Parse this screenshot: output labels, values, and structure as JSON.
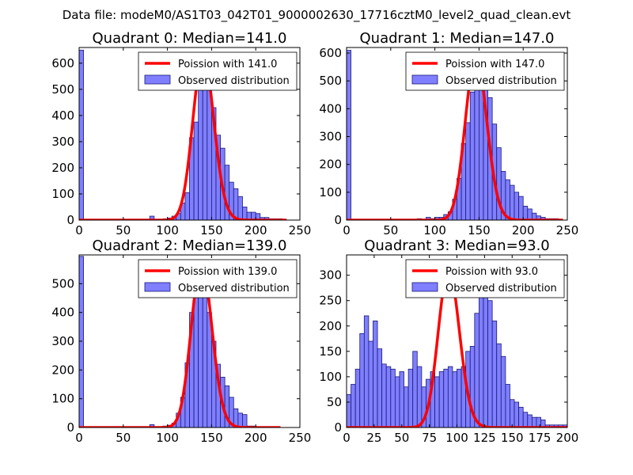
{
  "figure_title": "Data file: modeM0/AS1T03_042T01_9000002630_17716cztM0_level2_quad_clean.evt",
  "colors": {
    "bar_fill": "#7f7fff",
    "bar_edge": "#1a1a7a",
    "poisson": "#ff0000",
    "axes": "#000000",
    "legend_edge": "#000000"
  },
  "chart_data": [
    {
      "type": "bar",
      "title": "Quadrant 0: Median=141.0",
      "xlim": [
        0,
        250
      ],
      "ylim": [
        0,
        660
      ],
      "xticks": [
        0,
        50,
        100,
        150,
        200,
        250
      ],
      "yticks": [
        0,
        100,
        200,
        300,
        400,
        500,
        600
      ],
      "bin_width": 5,
      "bars": [
        [
          0,
          650
        ],
        [
          80,
          15
        ],
        [
          95,
          5
        ],
        [
          100,
          8
        ],
        [
          105,
          15
        ],
        [
          110,
          25
        ],
        [
          115,
          65
        ],
        [
          120,
          105
        ],
        [
          125,
          315
        ],
        [
          130,
          375
        ],
        [
          135,
          555
        ],
        [
          140,
          600
        ],
        [
          145,
          555
        ],
        [
          150,
          430
        ],
        [
          155,
          325
        ],
        [
          160,
          275
        ],
        [
          165,
          210
        ],
        [
          170,
          145
        ],
        [
          175,
          120
        ],
        [
          180,
          90
        ],
        [
          185,
          50
        ],
        [
          190,
          30
        ],
        [
          195,
          30
        ],
        [
          200,
          25
        ],
        [
          205,
          10
        ],
        [
          210,
          10
        ],
        [
          215,
          5
        ],
        [
          220,
          5
        ],
        [
          225,
          5
        ]
      ],
      "poisson_label": "Poission with 141.0",
      "observed_label": "Observed distribution",
      "poisson_curve": {
        "mean": 141.0,
        "peak": 630,
        "x_range": [
          0,
          235
        ]
      }
    },
    {
      "type": "bar",
      "title": "Quadrant 1: Median=147.0",
      "xlim": [
        0,
        250
      ],
      "ylim": [
        0,
        620
      ],
      "xticks": [
        0,
        50,
        100,
        150,
        200,
        250
      ],
      "yticks": [
        0,
        100,
        200,
        300,
        400,
        500,
        600
      ],
      "bin_width": 5,
      "bars": [
        [
          0,
          610
        ],
        [
          80,
          5
        ],
        [
          90,
          10
        ],
        [
          95,
          5
        ],
        [
          100,
          10
        ],
        [
          105,
          10
        ],
        [
          110,
          20
        ],
        [
          115,
          30
        ],
        [
          120,
          75
        ],
        [
          125,
          150
        ],
        [
          130,
          275
        ],
        [
          135,
          350
        ],
        [
          140,
          460
        ],
        [
          145,
          560
        ],
        [
          150,
          590
        ],
        [
          155,
          540
        ],
        [
          160,
          440
        ],
        [
          165,
          345
        ],
        [
          170,
          260
        ],
        [
          175,
          175
        ],
        [
          180,
          145
        ],
        [
          185,
          125
        ],
        [
          190,
          100
        ],
        [
          195,
          85
        ],
        [
          200,
          50
        ],
        [
          205,
          40
        ],
        [
          210,
          25
        ],
        [
          215,
          15
        ],
        [
          220,
          10
        ],
        [
          225,
          5
        ],
        [
          230,
          5
        ],
        [
          235,
          5
        ]
      ],
      "poisson_label": "Poission with 147.0",
      "observed_label": "Observed distribution",
      "poisson_curve": {
        "mean": 147.0,
        "peak": 590,
        "x_range": [
          0,
          245
        ]
      }
    },
    {
      "type": "bar",
      "title": "Quadrant 2: Median=139.0",
      "xlim": [
        0,
        250
      ],
      "ylim": [
        0,
        600
      ],
      "xticks": [
        0,
        50,
        100,
        150,
        200,
        250
      ],
      "yticks": [
        0,
        100,
        200,
        300,
        400,
        500
      ],
      "bin_width": 5,
      "bars": [
        [
          0,
          595
        ],
        [
          80,
          10
        ],
        [
          95,
          5
        ],
        [
          100,
          8
        ],
        [
          105,
          15
        ],
        [
          110,
          50
        ],
        [
          115,
          105
        ],
        [
          120,
          225
        ],
        [
          125,
          400
        ],
        [
          130,
          575
        ],
        [
          135,
          500
        ],
        [
          140,
          550
        ],
        [
          145,
          400
        ],
        [
          150,
          300
        ],
        [
          155,
          220
        ],
        [
          160,
          175
        ],
        [
          165,
          145
        ],
        [
          170,
          105
        ],
        [
          175,
          65
        ],
        [
          180,
          50
        ],
        [
          185,
          45
        ],
        [
          190,
          5
        ],
        [
          195,
          5
        ]
      ],
      "poisson_label": "Poission with 139.0",
      "observed_label": "Observed distribution",
      "poisson_curve": {
        "mean": 139.0,
        "peak": 570,
        "x_range": [
          0,
          228
        ]
      }
    },
    {
      "type": "bar",
      "title": "Quadrant 3: Median=93.0",
      "xlim": [
        0,
        200
      ],
      "ylim": [
        0,
        340
      ],
      "xticks": [
        0,
        25,
        50,
        75,
        100,
        125,
        150,
        175,
        200
      ],
      "yticks": [
        0,
        50,
        100,
        150,
        200,
        250,
        300
      ],
      "bin_width": 4,
      "bars": [
        [
          0,
          65
        ],
        [
          4,
          85
        ],
        [
          8,
          115
        ],
        [
          12,
          185
        ],
        [
          16,
          220
        ],
        [
          20,
          170
        ],
        [
          24,
          210
        ],
        [
          28,
          155
        ],
        [
          32,
          125
        ],
        [
          36,
          120
        ],
        [
          40,
          115
        ],
        [
          44,
          100
        ],
        [
          48,
          110
        ],
        [
          52,
          80
        ],
        [
          56,
          115
        ],
        [
          60,
          150
        ],
        [
          64,
          120
        ],
        [
          68,
          80
        ],
        [
          72,
          95
        ],
        [
          76,
          110
        ],
        [
          80,
          100
        ],
        [
          84,
          110
        ],
        [
          88,
          115
        ],
        [
          92,
          120
        ],
        [
          96,
          110
        ],
        [
          100,
          115
        ],
        [
          104,
          120
        ],
        [
          108,
          150
        ],
        [
          112,
          160
        ],
        [
          116,
          225
        ],
        [
          120,
          305
        ],
        [
          124,
          305
        ],
        [
          128,
          250
        ],
        [
          132,
          210
        ],
        [
          136,
          165
        ],
        [
          140,
          140
        ],
        [
          144,
          85
        ],
        [
          148,
          55
        ],
        [
          152,
          50
        ],
        [
          156,
          40
        ],
        [
          160,
          30
        ],
        [
          164,
          25
        ],
        [
          168,
          20
        ],
        [
          172,
          20
        ],
        [
          176,
          15
        ],
        [
          180,
          5
        ],
        [
          184,
          5
        ],
        [
          188,
          5
        ],
        [
          192,
          5
        ],
        [
          196,
          5
        ]
      ],
      "poisson_label": "Poission with 93.0",
      "observed_label": "Observed distribution",
      "poisson_curve": {
        "mean": 93.0,
        "peak": 310,
        "x_range": [
          0,
          200
        ]
      }
    }
  ]
}
